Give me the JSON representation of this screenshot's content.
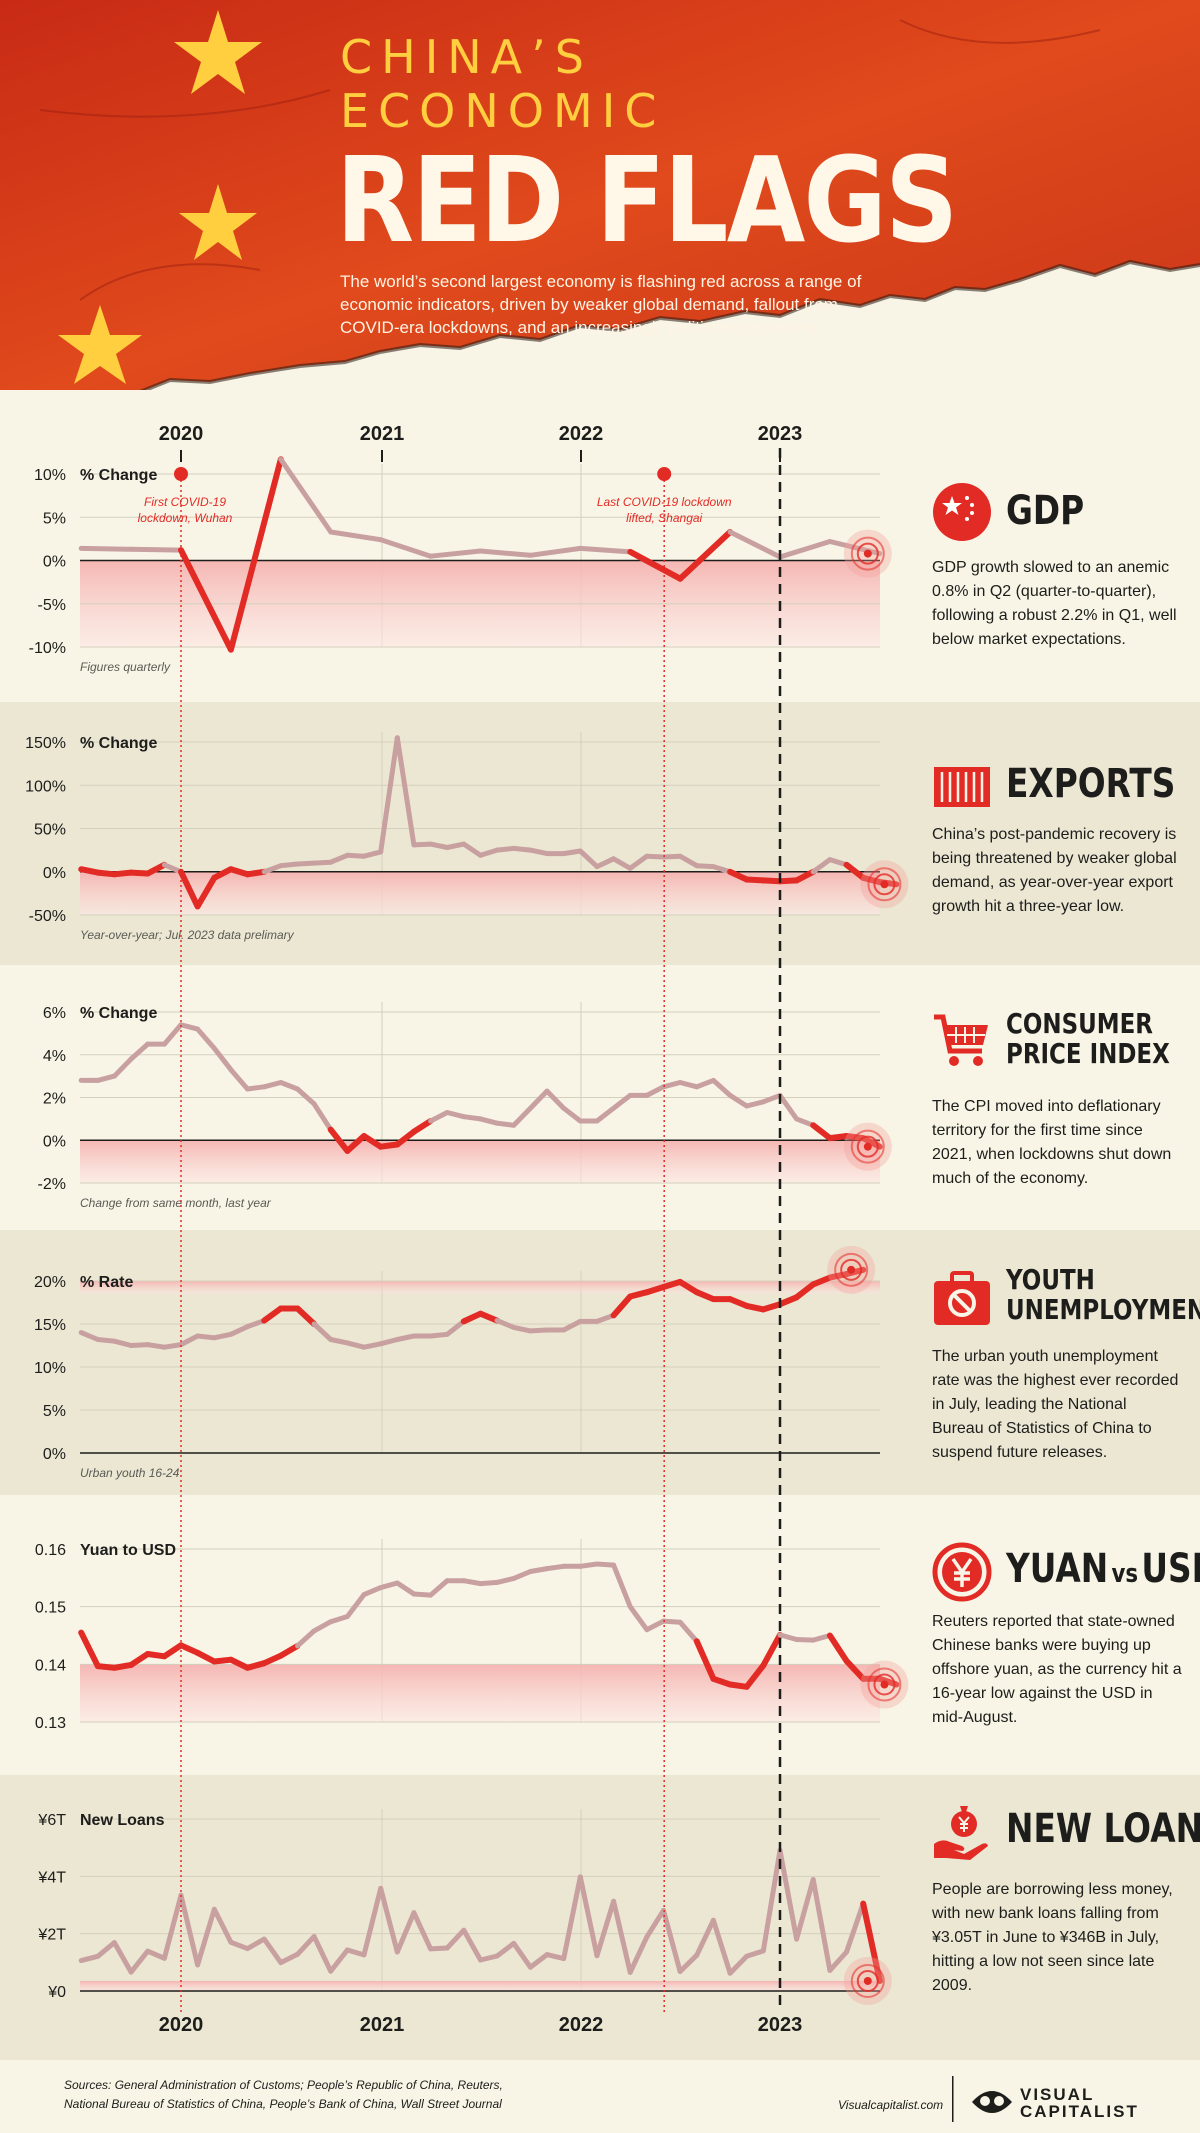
{
  "header": {
    "kicker": "CHINA’S ECONOMIC",
    "title": "RED FLAGS",
    "intro": "The world’s second largest economy is flashing red across a range of economic indicators, driven by weaker global demand, fallout from COVID-era lockdowns, and an increasingly politicized economy."
  },
  "years": [
    "2020",
    "2021",
    "2022",
    "2023"
  ],
  "events": {
    "first": "First COVID-19 lockdown, Wuhan",
    "first_line1": "First COVID-19",
    "first_line2": "lockdown, Wuhan",
    "last": "Last COVID-19 lockdown lifted, Shangai",
    "last_line1": "Last COVID-19 lockdown",
    "last_line2": "lifted, Shangai"
  },
  "panels": [
    {
      "id": "gdp",
      "title": "GDP",
      "title2": "",
      "icon": "china-flag-icon",
      "unit_label": "% Change",
      "footnote": "Figures quarterly",
      "description": "GDP growth slowed to an anemic 0.8% in Q2 (quarter-to-quarter), following a robust 2.2% in Q1, well below market expectations."
    },
    {
      "id": "exports",
      "title": "EXPORTS",
      "title2": "",
      "icon": "shipping-container-icon",
      "unit_label": "% Change",
      "footnote": "Year-over-year; Jul. 2023 data prelimary",
      "description": "China’s post-pandemic recovery is being threatened by weaker global demand, as year-over-year export growth hit a three-year low."
    },
    {
      "id": "cpi",
      "title": "CONSUMER",
      "title2": "PRICE INDEX",
      "icon": "shopping-cart-icon",
      "unit_label": "% Change",
      "footnote": "Change from same month, last year",
      "description": "The CPI moved into deflationary territory for the first time since 2021, when lockdowns shut down much of the economy."
    },
    {
      "id": "youth",
      "title": "YOUTH",
      "title2": "UNEMPLOYMENT",
      "icon": "briefcase-no-icon",
      "unit_label": "% Rate",
      "footnote": "Urban youth 16-24",
      "description": "The urban youth unemployment rate was the highest ever recorded in July, leading the National Bureau of Statistics of China to suspend future releases."
    },
    {
      "id": "yuan",
      "title": "YUAN",
      "title_vs": "vs",
      "title3": "USD",
      "title2": "",
      "icon": "yen-coin-icon",
      "unit_label": "Yuan to USD",
      "footnote": "",
      "description": "Reuters reported that state-owned Chinese banks were buying up offshore yuan, as the currency hit a 16-year low against the USD in mid-August."
    },
    {
      "id": "loans",
      "title": "NEW LOANS",
      "title2": "",
      "icon": "money-bag-hand-icon",
      "unit_label": "New Loans",
      "footnote": "",
      "description": "People are borrowing less money, with new bank loans falling from ¥3.05T in June to ¥346B in July, hitting a low not seen since late 2009."
    }
  ],
  "chart_data": [
    {
      "id": "gdp",
      "type": "line",
      "title": "GDP",
      "ylabel": "% Change",
      "ylim": [
        -10,
        10
      ],
      "yticks": [
        10,
        5,
        0,
        -5,
        -10
      ],
      "ytick_labels": [
        "10%",
        "5%",
        "0%",
        "-5%",
        "-10%"
      ],
      "x": [
        2019.5,
        2019.75,
        2020.0,
        2020.25,
        2020.5,
        2020.75,
        2021.0,
        2021.25,
        2021.5,
        2021.75,
        2022.0,
        2022.25,
        2022.5,
        2022.75,
        2023.0,
        2023.25,
        2023.5
      ],
      "values": [
        1.4,
        1.3,
        1.2,
        -10.3,
        11.7,
        3.3,
        2.4,
        0.5,
        1.1,
        0.6,
        1.4,
        1.0,
        -2.1,
        3.3,
        0.4,
        2.2,
        0.8
      ]
    },
    {
      "id": "exports",
      "type": "line",
      "title": "EXPORTS",
      "ylabel": "% Change",
      "ylim": [
        -50,
        150
      ],
      "yticks": [
        150,
        100,
        50,
        0,
        -50
      ],
      "ytick_labels": [
        "150%",
        "100%",
        "50%",
        "0%",
        "-50%"
      ],
      "x_start": 2019.5,
      "x_step": 0.08333,
      "values": [
        3,
        -1,
        -3,
        -1,
        -2,
        8,
        0,
        -40,
        -7,
        3,
        -3,
        0,
        7,
        9,
        10,
        11,
        19,
        18,
        23,
        155,
        31,
        32,
        28,
        32,
        19,
        25,
        27,
        25,
        21,
        21,
        24,
        6,
        15,
        4,
        18,
        17,
        18,
        7,
        6,
        0,
        -9,
        -10,
        -11,
        -10,
        0,
        14,
        8,
        -7,
        -12,
        -14.5
      ]
    },
    {
      "id": "cpi",
      "type": "line",
      "title": "CONSUMER PRICE INDEX",
      "ylabel": "% Change",
      "ylim": [
        -2,
        6
      ],
      "yticks": [
        6,
        4,
        2,
        0,
        -2
      ],
      "ytick_labels": [
        "6%",
        "4%",
        "2%",
        "0%",
        "-2%"
      ],
      "x_start": 2019.5,
      "x_step": 0.08333,
      "values": [
        2.8,
        2.8,
        3.0,
        3.8,
        4.5,
        4.5,
        5.4,
        5.2,
        4.3,
        3.3,
        2.4,
        2.5,
        2.7,
        2.4,
        1.7,
        0.5,
        -0.5,
        0.2,
        -0.3,
        -0.2,
        0.4,
        0.9,
        1.3,
        1.1,
        1.0,
        0.8,
        0.7,
        1.5,
        2.3,
        1.5,
        0.9,
        0.9,
        1.5,
        2.1,
        2.1,
        2.5,
        2.7,
        2.5,
        2.8,
        2.1,
        1.6,
        1.8,
        2.1,
        1.0,
        0.7,
        0.1,
        0.2,
        0.1,
        -0.3
      ]
    },
    {
      "id": "youth",
      "type": "line",
      "title": "YOUTH UNEMPLOYMENT",
      "ylabel": "% Rate",
      "ylim": [
        0,
        20
      ],
      "yticks": [
        20,
        15,
        10,
        5,
        0
      ],
      "ytick_labels": [
        "20%",
        "15%",
        "10%",
        "5%",
        "0%"
      ],
      "x_start": 2019.5,
      "x_step": 0.08333,
      "values": [
        14.0,
        13.2,
        13.0,
        12.5,
        12.6,
        12.3,
        12.6,
        13.6,
        13.4,
        13.8,
        14.7,
        15.4,
        16.8,
        16.8,
        15.0,
        13.2,
        12.8,
        12.3,
        12.7,
        13.2,
        13.6,
        13.6,
        13.8,
        15.3,
        16.2,
        15.4,
        14.6,
        14.2,
        14.3,
        14.3,
        15.3,
        15.3,
        16.0,
        18.2,
        18.7,
        19.3,
        19.9,
        18.7,
        17.9,
        17.9,
        17.1,
        16.7,
        17.3,
        18.1,
        19.6,
        20.4,
        20.8,
        21.3
      ]
    },
    {
      "id": "yuan",
      "type": "line",
      "title": "YUAN vs USD",
      "ylabel": "Yuan to USD",
      "ylim": [
        0.13,
        0.16
      ],
      "yticks": [
        0.16,
        0.15,
        0.14,
        0.13
      ],
      "ytick_labels": [
        "0.16",
        "0.15",
        "0.14",
        "0.13"
      ],
      "x_start": 2019.5,
      "x_step": 0.08333,
      "values": [
        0.1455,
        0.1397,
        0.1394,
        0.1399,
        0.1418,
        0.1414,
        0.1433,
        0.142,
        0.1405,
        0.1408,
        0.1394,
        0.1402,
        0.1415,
        0.1432,
        0.1458,
        0.1474,
        0.1483,
        0.1521,
        0.1533,
        0.1541,
        0.1522,
        0.152,
        0.1545,
        0.1545,
        0.154,
        0.1542,
        0.1549,
        0.1561,
        0.1566,
        0.157,
        0.157,
        0.1574,
        0.1572,
        0.15,
        0.146,
        0.1475,
        0.1473,
        0.144,
        0.1375,
        0.1365,
        0.1361,
        0.1398,
        0.1451,
        0.1443,
        0.1442,
        0.145,
        0.1406,
        0.1375,
        0.1375,
        0.1365
      ]
    },
    {
      "id": "loans",
      "type": "line",
      "title": "NEW LOANS",
      "ylabel": "New Loans",
      "ylim": [
        0,
        6
      ],
      "yticks": [
        6,
        4,
        2,
        0
      ],
      "ytick_labels": [
        "¥6T",
        "¥4T",
        "¥2T",
        "¥0"
      ],
      "x_start": 2019.5,
      "x_step": 0.08333,
      "values": [
        1.06,
        1.21,
        1.69,
        0.66,
        1.39,
        1.14,
        3.34,
        0.91,
        2.85,
        1.7,
        1.48,
        1.81,
        0.99,
        1.28,
        1.9,
        0.69,
        1.43,
        1.26,
        3.58,
        1.36,
        2.73,
        1.47,
        1.5,
        2.12,
        1.08,
        1.22,
        1.66,
        0.83,
        1.27,
        1.13,
        3.98,
        1.23,
        3.13,
        0.65,
        1.89,
        2.81,
        0.68,
        1.25,
        2.47,
        0.62,
        1.21,
        1.4,
        4.9,
        1.81,
        3.89,
        0.72,
        1.36,
        3.05,
        0.35
      ]
    }
  ],
  "footer": {
    "sources_line1": "Sources: General Administration of Customs; People’s Republic of China, Reuters,",
    "sources_line2": "National Bureau of Statistics of China, People’s Bank of China, Wall Street Journal",
    "site": "Visualcapitalist.com",
    "brand_line1": "VISUAL",
    "brand_line2": "CAPITALIST"
  },
  "colors": {
    "red": "#e32b26",
    "faded": "#c9a0a0",
    "band": "#f9c9c6",
    "bg_light": "#f8f5e6",
    "bg_dark": "#ebe7d3",
    "yellow": "#ffcf3f"
  }
}
